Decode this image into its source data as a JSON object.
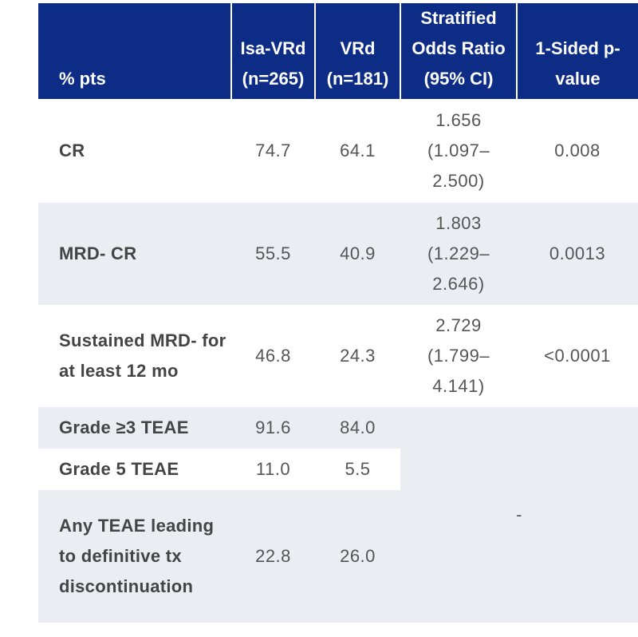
{
  "table": {
    "header": [
      "% pts",
      "Isa-VRd (n=265)",
      "VRd (n=181)",
      "Stratified Odds Ratio (95% CI)",
      "1-Sided p-value"
    ],
    "rows": [
      [
        "CR",
        "74.7",
        "64.1",
        "1.656 (1.097–2.500)",
        "0.008"
      ],
      [
        "MRD- CR",
        "55.5",
        "40.9",
        "1.803 (1.229–2.646)",
        "0.0013"
      ],
      [
        "Sustained MRD- for at least 12 mo",
        "46.8",
        "24.3",
        "2.729 (1.799–4.141)",
        "<0.0001"
      ],
      [
        "Grade ≥3 TEAE",
        "91.6",
        "84.0"
      ],
      [
        "Grade 5 TEAE",
        "11.0",
        "5.5"
      ],
      [
        "Any TEAE leading to definitive tx discontinuation",
        "22.8",
        "26.0"
      ]
    ],
    "merged": "-"
  }
}
